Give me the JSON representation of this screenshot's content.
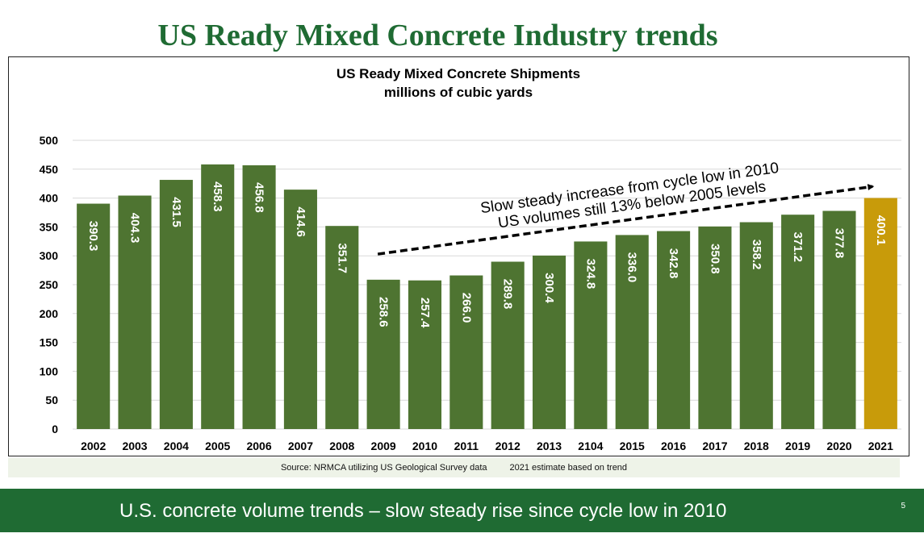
{
  "slide": {
    "title": "US Ready Mixed Concrete Industry trends",
    "source": "Source: NRMCA utilizing US Geological Survey data",
    "estimate_note": "2021 estimate based on trend",
    "footer": "U.S. concrete volume trends  – slow steady rise since cycle low in 2010",
    "page_number": "5"
  },
  "chart_data": {
    "type": "bar",
    "title": "US Ready Mixed Concrete Shipments",
    "subtitle": "millions of cubic yards",
    "categories": [
      "2002",
      "2003",
      "2004",
      "2005",
      "2006",
      "2007",
      "2008",
      "2009",
      "2010",
      "2011",
      "2012",
      "2013",
      "2104",
      "2015",
      "2016",
      "2017",
      "2018",
      "2019",
      "2020",
      "2021"
    ],
    "values": [
      390.3,
      404.3,
      431.5,
      458.3,
      456.8,
      414.6,
      351.7,
      258.6,
      257.4,
      266.0,
      289.8,
      300.4,
      324.8,
      336.0,
      342.8,
      350.8,
      358.2,
      371.2,
      377.8,
      400.1
    ],
    "data_labels": [
      "390.3",
      "404.3",
      "431.5",
      "458.3",
      "456.8",
      "414.6",
      "351.7",
      "258.6",
      "257.4",
      "266.0",
      "289.8",
      "300.4",
      "324.8",
      "336.0",
      "342.8",
      "350.8",
      "358.2",
      "371.2",
      "377.8",
      "400.1"
    ],
    "yticks": [
      "0",
      "50",
      "100",
      "150",
      "200",
      "250",
      "300",
      "350",
      "400",
      "450",
      "500"
    ],
    "ylim": [
      0,
      500
    ],
    "grid": true,
    "colors": {
      "bar": "#4e7431",
      "highlight": "#c89b0a",
      "grid": "#d9d9d9"
    },
    "highlight_index": 19,
    "annotation": {
      "lines": [
        "Slow steady increase from cycle low in 2010",
        "US volumes still 13% below 2005 levels"
      ],
      "arrow_from": {
        "category": "2009",
        "value": 303
      },
      "arrow_to": {
        "category": "2021",
        "value": 420
      }
    }
  }
}
